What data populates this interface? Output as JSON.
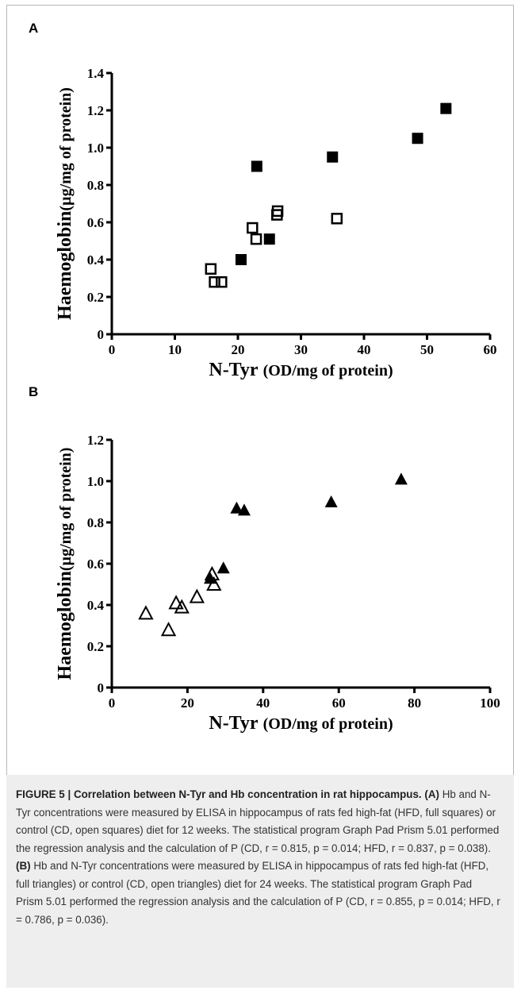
{
  "panels": {
    "a_label": "A",
    "b_label": "B"
  },
  "chart_data": [
    {
      "type": "scatter",
      "panel": "A",
      "ylabel_main": "Haemoglobin",
      "ylabel_unit": "(µg/mg of protein)",
      "xlabel_main": "N-Tyr",
      "xlabel_unit": "(OD/mg of protein)",
      "xlim": [
        0,
        60
      ],
      "ylim": [
        0,
        1.4
      ],
      "x_ticks": [
        "0",
        "10",
        "20",
        "30",
        "40",
        "50",
        "60"
      ],
      "y_ticks": [
        "0",
        "0.2",
        "0.4",
        "0.6",
        "0.8",
        "1.0",
        "1.2",
        "1.4"
      ],
      "grid": false,
      "series": [
        {
          "marker": "filled-square",
          "color": "#000000",
          "points": [
            [
              20.5,
              0.4
            ],
            [
              23.0,
              0.9
            ],
            [
              25.0,
              0.51
            ],
            [
              35.0,
              0.95
            ],
            [
              48.5,
              1.05
            ],
            [
              53.0,
              1.21
            ]
          ]
        },
        {
          "marker": "open-square",
          "color": "#000000",
          "points": [
            [
              15.7,
              0.35
            ],
            [
              16.3,
              0.28
            ],
            [
              17.4,
              0.28
            ],
            [
              22.3,
              0.57
            ],
            [
              22.9,
              0.51
            ],
            [
              26.2,
              0.64
            ],
            [
              26.3,
              0.66
            ],
            [
              35.7,
              0.62
            ]
          ]
        }
      ]
    },
    {
      "type": "scatter",
      "panel": "B",
      "ylabel_main": "Haemoglobin",
      "ylabel_unit": "(µg/mg of protein)",
      "xlabel_main": "N-Tyr",
      "xlabel_unit": "(OD/mg of protein)",
      "xlim": [
        0,
        100
      ],
      "ylim": [
        0,
        1.2
      ],
      "x_ticks": [
        "0",
        "20",
        "40",
        "60",
        "80",
        "100"
      ],
      "y_ticks": [
        "0",
        "0.2",
        "0.4",
        "0.6",
        "0.8",
        "1.0",
        "1.2"
      ],
      "grid": false,
      "series": [
        {
          "marker": "filled-triangle",
          "color": "#000000",
          "points": [
            [
              26.0,
              0.53
            ],
            [
              29.5,
              0.58
            ],
            [
              33.0,
              0.87
            ],
            [
              35.0,
              0.86
            ],
            [
              58.0,
              0.9
            ],
            [
              76.5,
              1.01
            ]
          ]
        },
        {
          "marker": "open-triangle",
          "color": "#000000",
          "points": [
            [
              9.0,
              0.36
            ],
            [
              15.0,
              0.28
            ],
            [
              17.0,
              0.41
            ],
            [
              18.5,
              0.39
            ],
            [
              22.5,
              0.44
            ],
            [
              26.5,
              0.55
            ],
            [
              27.0,
              0.5
            ]
          ]
        }
      ]
    }
  ],
  "caption": {
    "title": "FIGURE 5 | Correlation between N-Tyr and Hb concentration in rat hippocampus.",
    "a_tag": "(A)",
    "a_text": " Hb and N-Tyr concentrations were measured by ELISA in hippocampus of rats fed high-fat (HFD, full squares) or control (CD, open squares) diet for 12 weeks. The statistical program Graph Pad Prism 5.01 performed the regression analysis and the calculation of P (CD, r = 0.815, p = 0.014; HFD, r = 0.837, p = 0.038). ",
    "b_tag": "(B)",
    "b_text": " Hb and N-Tyr concentrations were measured by ELISA in hippocampus of rats fed high-fat (HFD, full triangles) or control (CD, open triangles) diet for 24 weeks. The statistical program Graph Pad Prism 5.01 performed the regression analysis and the calculation of P (CD, r = 0.855, p = 0.014; HFD, r = 0.786, p = 0.036)."
  }
}
